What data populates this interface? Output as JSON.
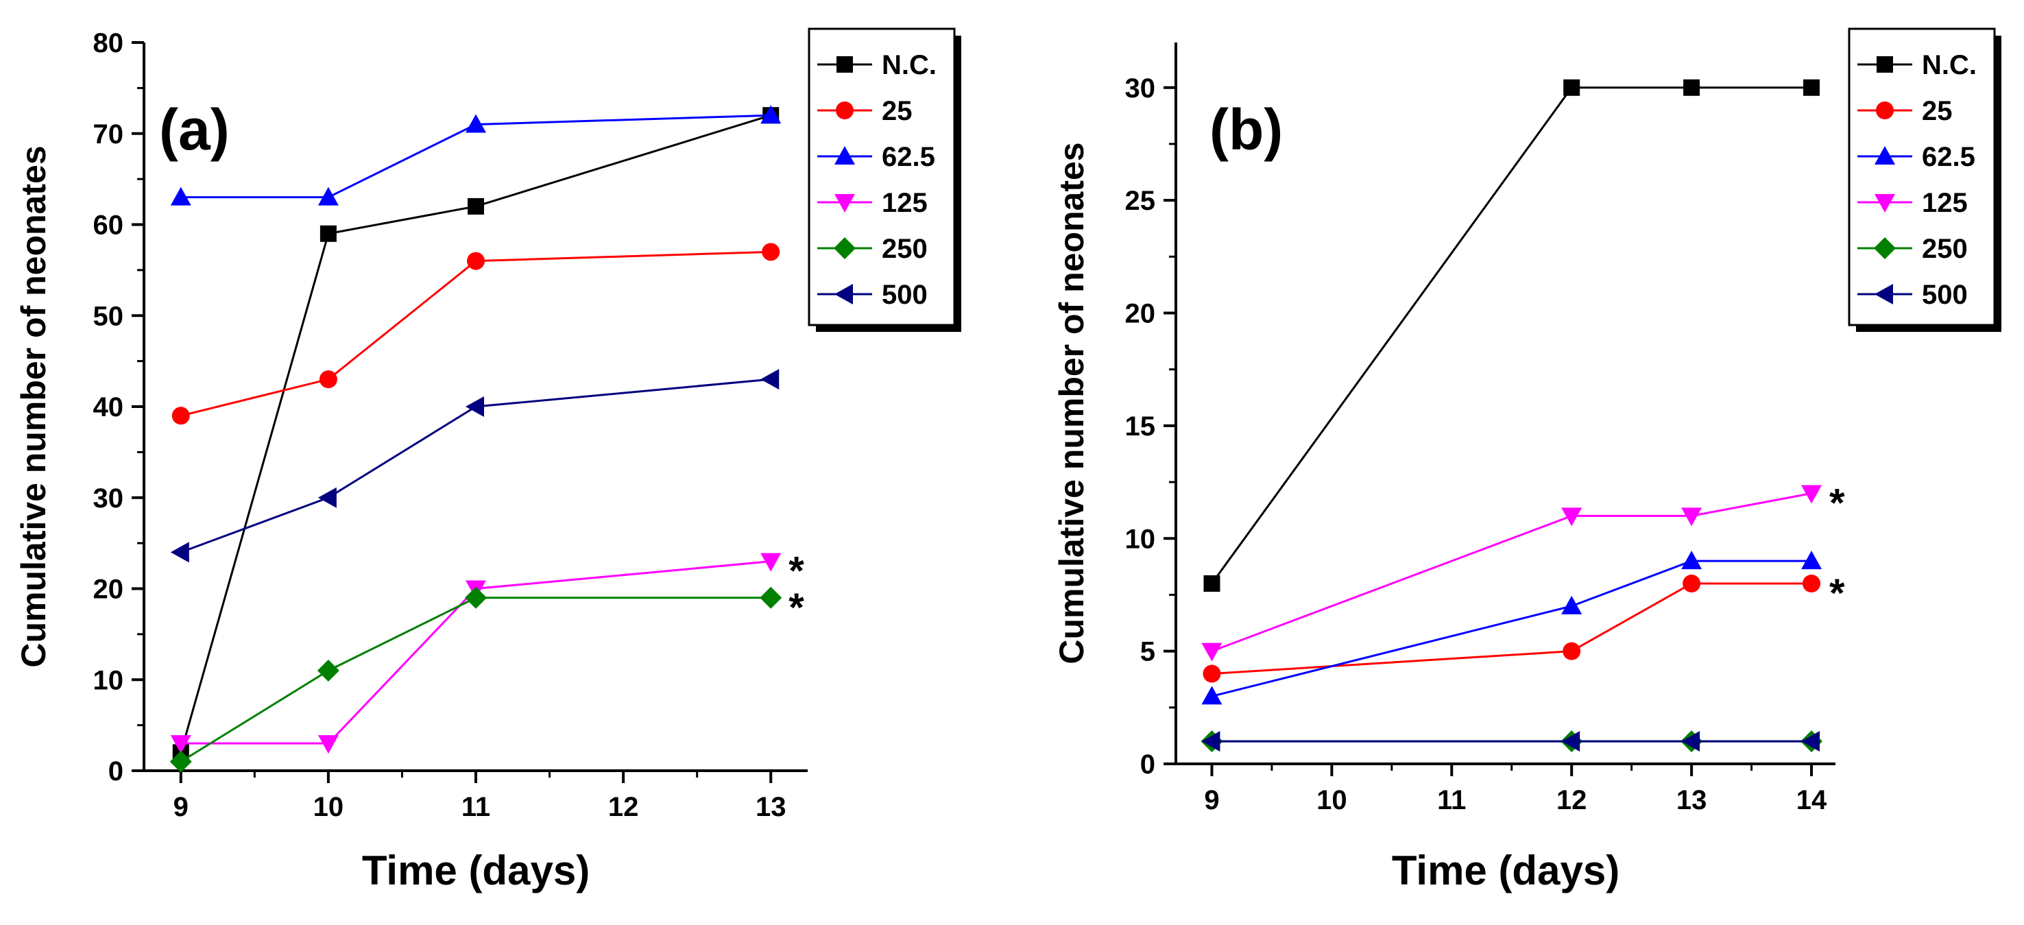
{
  "chart_data": [
    {
      "type": "line",
      "panel_label": "(a)",
      "xlabel": "Time (days)",
      "ylabel": "Cumulative number of neonates",
      "xlim": [
        8.75,
        13.25
      ],
      "ylim": [
        0,
        80
      ],
      "xticks": [
        9,
        10,
        11,
        12,
        13
      ],
      "yticks": [
        0,
        10,
        20,
        30,
        40,
        50,
        60,
        70,
        80
      ],
      "grid": false,
      "legend_position": "top-right",
      "series": [
        {
          "name": "N.C.",
          "color": "#000000",
          "marker": "square",
          "x": [
            9,
            10,
            11,
            13
          ],
          "values": [
            2,
            59,
            62,
            72
          ]
        },
        {
          "name": "25",
          "color": "#ff0000",
          "marker": "circle",
          "x": [
            9,
            10,
            11,
            13
          ],
          "values": [
            39,
            43,
            56,
            57
          ]
        },
        {
          "name": "62.5",
          "color": "#0000ff",
          "marker": "triangle-up",
          "x": [
            9,
            10,
            11,
            13
          ],
          "values": [
            63,
            63,
            71,
            72
          ]
        },
        {
          "name": "125",
          "color": "#ff00ff",
          "marker": "triangle-down",
          "x": [
            9,
            10,
            11,
            13
          ],
          "values": [
            3,
            3,
            20,
            23
          ]
        },
        {
          "name": "250",
          "color": "#008000",
          "marker": "diamond",
          "x": [
            9,
            10,
            11,
            13
          ],
          "values": [
            1,
            11,
            19,
            19
          ]
        },
        {
          "name": "500",
          "color": "#000080",
          "marker": "triangle-left",
          "x": [
            9,
            10,
            11,
            13
          ],
          "values": [
            24,
            30,
            40,
            43
          ]
        }
      ],
      "annotations": [
        {
          "text": "*",
          "x": 13,
          "y": 23
        },
        {
          "text": "*",
          "x": 13,
          "y": 19
        }
      ]
    },
    {
      "type": "line",
      "panel_label": "(b)",
      "xlabel": "Time (days)",
      "ylabel": "Cumulative number of neonates",
      "xlim": [
        8.7,
        14.2
      ],
      "ylim": [
        0,
        32
      ],
      "xticks": [
        9,
        10,
        11,
        12,
        13,
        14
      ],
      "yticks": [
        0,
        5,
        10,
        15,
        20,
        25,
        30
      ],
      "grid": false,
      "legend_position": "top-right",
      "series": [
        {
          "name": "N.C.",
          "color": "#000000",
          "marker": "square",
          "x": [
            9,
            12,
            13,
            14
          ],
          "values": [
            8,
            30,
            30,
            30
          ]
        },
        {
          "name": "25",
          "color": "#ff0000",
          "marker": "circle",
          "x": [
            9,
            12,
            13,
            14
          ],
          "values": [
            4,
            5,
            8,
            8
          ]
        },
        {
          "name": "62.5",
          "color": "#0000ff",
          "marker": "triangle-up",
          "x": [
            9,
            12,
            13,
            14
          ],
          "values": [
            3,
            7,
            9,
            9
          ]
        },
        {
          "name": "125",
          "color": "#ff00ff",
          "marker": "triangle-down",
          "x": [
            9,
            12,
            13,
            14
          ],
          "values": [
            5,
            11,
            11,
            12
          ]
        },
        {
          "name": "250",
          "color": "#008000",
          "marker": "diamond",
          "x": [
            9,
            12,
            13,
            14
          ],
          "values": [
            1,
            1,
            1,
            1
          ]
        },
        {
          "name": "500",
          "color": "#000080",
          "marker": "triangle-left",
          "x": [
            9,
            12,
            13,
            14
          ],
          "values": [
            1,
            1,
            1,
            1
          ]
        }
      ],
      "annotations": [
        {
          "text": "*",
          "x": 14,
          "y": 12
        },
        {
          "text": "*",
          "x": 14,
          "y": 8
        }
      ]
    }
  ]
}
